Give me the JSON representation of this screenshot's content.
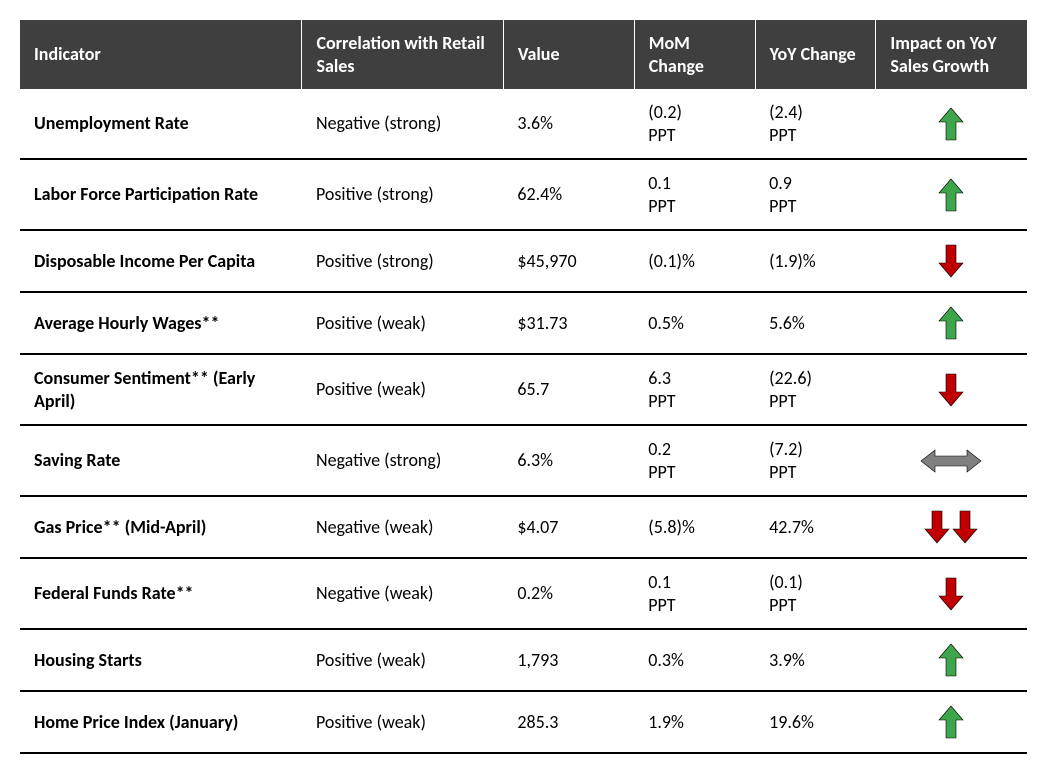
{
  "colors": {
    "header_bg": "#3f3f3f",
    "header_fg": "#ffffff",
    "row_border": "#000000",
    "arrow_up": "#3da64a",
    "arrow_down": "#c00000",
    "arrow_neutral": "#808080"
  },
  "columns": [
    "Indicator",
    "Correlation with Retail Sales",
    "Value",
    "MoM Change",
    "YoY Change",
    "Impact on YoY Sales Growth"
  ],
  "rows": [
    {
      "indicator": "Unemployment Rate",
      "correlation": "Negative (strong)",
      "value": "3.6%",
      "mom": "(0.2) PPT",
      "yoy": "(2.4) PPT",
      "impact": "up"
    },
    {
      "indicator": "Labor Force Participation Rate",
      "correlation": "Positive (strong)",
      "value": "62.4%",
      "mom": "0.1 PPT",
      "yoy": "0.9 PPT",
      "impact": "up"
    },
    {
      "indicator": "Disposable Income Per Capita",
      "correlation": "Positive (strong)",
      "value": "$45,970",
      "mom": "(0.1)%",
      "yoy": "(1.9)%",
      "impact": "down"
    },
    {
      "indicator": "Average Hourly Wages**",
      "correlation": "Positive (weak)",
      "value": "$31.73",
      "mom": "0.5%",
      "yoy": "5.6%",
      "impact": "up"
    },
    {
      "indicator": "Consumer Sentiment** (Early April)",
      "correlation": "Positive (weak)",
      "value": "65.7",
      "mom": "6.3 PPT",
      "yoy": "(22.6) PPT",
      "impact": "down"
    },
    {
      "indicator": "Saving Rate",
      "correlation": "Negative (strong)",
      "value": "6.3%",
      "mom": "0.2 PPT",
      "yoy": "(7.2) PPT",
      "impact": "neutral"
    },
    {
      "indicator": "Gas Price** (Mid-April)",
      "correlation": "Negative (weak)",
      "value": "$4.07",
      "mom": "(5.8)%",
      "yoy": "42.7%",
      "impact": "double-down"
    },
    {
      "indicator": "Federal Funds Rate**",
      "correlation": "Negative (weak)",
      "value": "0.2%",
      "mom": "0.1  PPT",
      "yoy": "(0.1)  PPT",
      "impact": "down"
    },
    {
      "indicator": "Housing Starts",
      "correlation": "Positive (weak)",
      "value": "1,793",
      "mom": "0.3%",
      "yoy": "3.9%",
      "impact": "up"
    },
    {
      "indicator": "Home Price Index (January)",
      "correlation": "Positive (weak)",
      "value": "285.3",
      "mom": "1.9%",
      "yoy": "19.6%",
      "impact": "up"
    }
  ]
}
